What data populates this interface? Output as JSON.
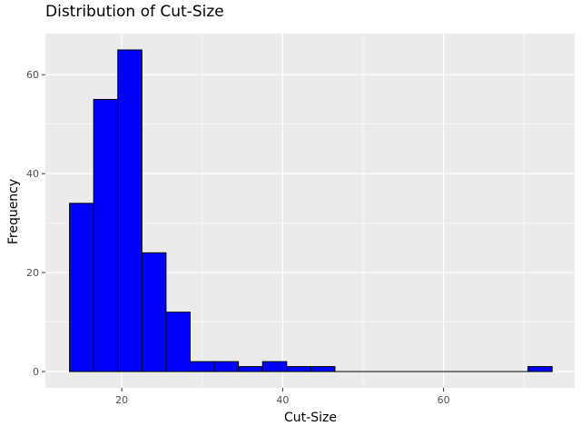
{
  "chart_data": {
    "type": "bar",
    "title": "Distribution of Cut-Size",
    "xlabel": "Cut-Size",
    "ylabel": "Frequency",
    "xlim": [
      10.5,
      76.3
    ],
    "ylim": [
      -3.3,
      68.3
    ],
    "xticks": [
      20,
      40,
      60
    ],
    "yticks": [
      0,
      20,
      40,
      60
    ],
    "bins": [
      {
        "x0": 13.5,
        "x1": 16.5,
        "count": 34
      },
      {
        "x0": 16.5,
        "x1": 19.5,
        "count": 55
      },
      {
        "x0": 19.5,
        "x1": 22.5,
        "count": 65
      },
      {
        "x0": 22.5,
        "x1": 25.5,
        "count": 24
      },
      {
        "x0": 25.5,
        "x1": 28.5,
        "count": 12
      },
      {
        "x0": 28.5,
        "x1": 31.5,
        "count": 2
      },
      {
        "x0": 31.5,
        "x1": 34.5,
        "count": 2
      },
      {
        "x0": 34.5,
        "x1": 37.5,
        "count": 1
      },
      {
        "x0": 37.5,
        "x1": 40.5,
        "count": 2
      },
      {
        "x0": 40.5,
        "x1": 43.5,
        "count": 1
      },
      {
        "x0": 43.5,
        "x1": 46.5,
        "count": 1
      },
      {
        "x0": 46.5,
        "x1": 49.5,
        "count": 0
      },
      {
        "x0": 49.5,
        "x1": 52.5,
        "count": 0
      },
      {
        "x0": 52.5,
        "x1": 55.5,
        "count": 0
      },
      {
        "x0": 55.5,
        "x1": 58.5,
        "count": 0
      },
      {
        "x0": 58.5,
        "x1": 61.5,
        "count": 0
      },
      {
        "x0": 61.5,
        "x1": 64.5,
        "count": 0
      },
      {
        "x0": 64.5,
        "x1": 67.5,
        "count": 0
      },
      {
        "x0": 67.5,
        "x1": 70.5,
        "count": 0
      },
      {
        "x0": 70.5,
        "x1": 73.5,
        "count": 1
      }
    ],
    "bar_color": "#0000ff",
    "bar_edge_color": "#000000",
    "panel_color": "#ebebeb",
    "grid_color": "#ffffff",
    "grid": true,
    "legend": false
  }
}
